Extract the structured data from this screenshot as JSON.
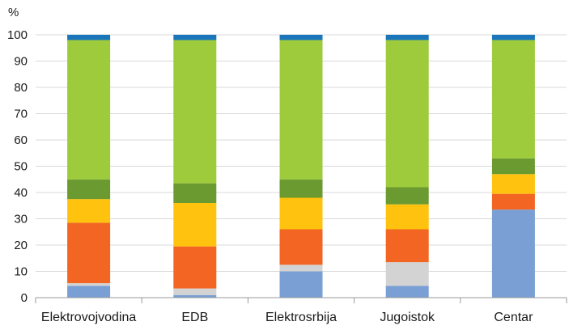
{
  "chart_data": {
    "type": "bar",
    "stacked": true,
    "ylabel": "%",
    "ylim": [
      0,
      100
    ],
    "yticks": [
      0,
      10,
      20,
      30,
      40,
      50,
      60,
      70,
      80,
      90,
      100
    ],
    "grid": true,
    "categories": [
      "Elektrovojvodina",
      "EDB",
      "Elektrosrbija",
      "Jugoistok",
      "Centar"
    ],
    "series": [
      {
        "color": "#7a9fd4",
        "values": [
          4.5,
          1,
          10,
          4.5,
          33.5
        ]
      },
      {
        "color": "#d3d3d3",
        "values": [
          1,
          2.5,
          2.5,
          9,
          0
        ]
      },
      {
        "color": "#f26522",
        "values": [
          23,
          16,
          13.5,
          12.5,
          6
        ]
      },
      {
        "color": "#ffc20e",
        "values": [
          9,
          16.5,
          12,
          9.5,
          7.5
        ]
      },
      {
        "color": "#6a9a30",
        "values": [
          7.5,
          7.5,
          7,
          6.5,
          6
        ]
      },
      {
        "color": "#9ecb3c",
        "values": [
          53,
          54.5,
          53,
          56,
          45
        ]
      },
      {
        "color": "#1b75bb",
        "values": [
          2,
          2,
          2,
          2,
          2
        ]
      }
    ]
  }
}
